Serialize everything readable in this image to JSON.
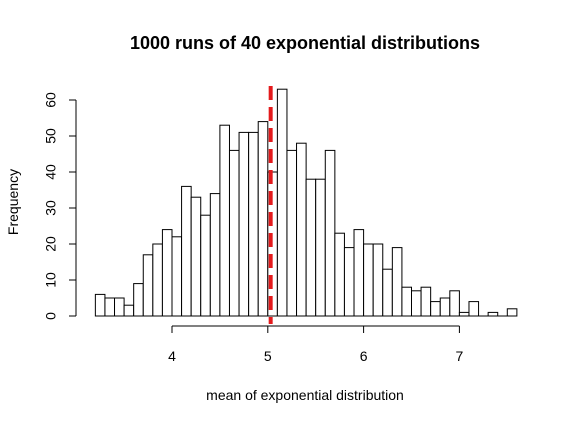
{
  "chart_data": {
    "type": "bar",
    "title": "1000 runs of 40 exponential distributions",
    "xlabel": "mean of exponential distribution",
    "ylabel": "Frequency",
    "xlim": [
      3.1,
      7.7
    ],
    "ylim": [
      0,
      63
    ],
    "x_ticks": [
      4,
      5,
      6,
      7
    ],
    "y_ticks": [
      0,
      10,
      20,
      30,
      40,
      50,
      60
    ],
    "bin_width": 0.1,
    "bins_start": [
      3.2,
      3.3,
      3.4,
      3.5,
      3.6,
      3.7,
      3.8,
      3.9,
      4.0,
      4.1,
      4.2,
      4.3,
      4.4,
      4.5,
      4.6,
      4.7,
      4.8,
      4.9,
      5.0,
      5.1,
      5.2,
      5.3,
      5.4,
      5.5,
      5.6,
      5.7,
      5.8,
      5.9,
      6.0,
      6.1,
      6.2,
      6.3,
      6.4,
      6.5,
      6.6,
      6.7,
      6.8,
      6.9,
      7.0,
      7.1,
      7.2,
      7.3,
      7.4,
      7.5
    ],
    "frequencies": [
      6,
      5,
      5,
      3,
      9,
      17,
      20,
      24,
      22,
      36,
      33,
      28,
      34,
      53,
      46,
      51,
      51,
      54,
      40,
      63,
      46,
      48,
      38,
      38,
      46,
      23,
      19,
      24,
      20,
      20,
      13,
      19,
      8,
      7,
      8,
      4,
      5,
      7,
      1,
      4,
      0,
      1,
      0,
      2
    ],
    "reference_line": {
      "x": 5.03,
      "color": "#e41a1c",
      "style": "dashed"
    },
    "bar_fill": "#ffffff",
    "bar_stroke": "#000000",
    "grid": false
  }
}
